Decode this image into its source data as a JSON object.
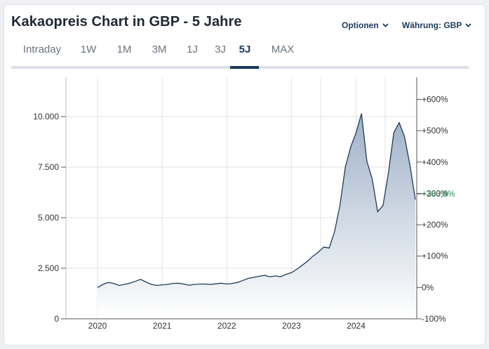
{
  "header": {
    "title": "Kakaopreis Chart in GBP - 5 Jahre",
    "options_label": "Optionen",
    "currency_label": "Währung: GBP"
  },
  "tabs": [
    {
      "label": "Intraday",
      "active": false
    },
    {
      "label": "1W",
      "active": false
    },
    {
      "label": "1M",
      "active": false
    },
    {
      "label": "3M",
      "active": false
    },
    {
      "label": "1J",
      "active": false
    },
    {
      "label": "3J",
      "active": false
    },
    {
      "label": "5J",
      "active": true
    },
    {
      "label": "MAX",
      "active": false
    }
  ],
  "colors": {
    "line": "#1f3a5c",
    "area_top": "#9fb1c7",
    "area_bottom": "#ffffff",
    "highlight": "#2e8b57",
    "axis_text": "#333333",
    "grid": "#e3e3e3"
  },
  "chart_data": {
    "type": "area",
    "x_start": "2020-01",
    "x_end": "2024-12",
    "y_left_ticks": [
      "0",
      "2.500",
      "5.000",
      "7.500",
      "10.000"
    ],
    "y_left_tick_values": [
      0,
      2500,
      5000,
      7500,
      10000
    ],
    "y_right_ticks": [
      "-100%",
      "0%",
      "+100%",
      "+200%",
      "+300%",
      "+400%",
      "+500%",
      "+600%"
    ],
    "y_right_tick_values": [
      -100,
      0,
      100,
      200,
      300,
      400,
      500,
      600
    ],
    "x_ticks": [
      "2020",
      "2021",
      "2022",
      "2023",
      "2024"
    ],
    "x_tick_values": [
      "2020-01",
      "2021-01",
      "2022-01",
      "2023-01",
      "2024-01"
    ],
    "ylim": [
      0,
      12000
    ],
    "current_change_label": "+283,8%",
    "series": [
      {
        "x": [
          "2020-01",
          "2020-02",
          "2020-03",
          "2020-04",
          "2020-05",
          "2020-06",
          "2020-07",
          "2020-08",
          "2020-09",
          "2020-10",
          "2020-11",
          "2020-12",
          "2021-01",
          "2021-02",
          "2021-03",
          "2021-04",
          "2021-05",
          "2021-06",
          "2021-07",
          "2021-08",
          "2021-09",
          "2021-10",
          "2021-11",
          "2021-12",
          "2022-01",
          "2022-02",
          "2022-03",
          "2022-04",
          "2022-05",
          "2022-06",
          "2022-07",
          "2022-08",
          "2022-09",
          "2022-10",
          "2022-11",
          "2022-12",
          "2023-01",
          "2023-02",
          "2023-03",
          "2023-04",
          "2023-05",
          "2023-06",
          "2023-07",
          "2023-08",
          "2023-09",
          "2023-10",
          "2023-11",
          "2023-12",
          "2024-01",
          "2024-02",
          "2024-03",
          "2024-04",
          "2024-05",
          "2024-06",
          "2024-07",
          "2024-08",
          "2024-09",
          "2024-10",
          "2024-11",
          "2024-12"
        ],
        "y": [
          1550,
          1700,
          1800,
          1750,
          1650,
          1700,
          1760,
          1850,
          1950,
          1820,
          1700,
          1650,
          1680,
          1700,
          1750,
          1760,
          1720,
          1660,
          1700,
          1720,
          1720,
          1700,
          1730,
          1760,
          1720,
          1750,
          1800,
          1900,
          2000,
          2050,
          2100,
          2150,
          2080,
          2120,
          2080,
          2200,
          2280,
          2450,
          2650,
          2850,
          3100,
          3300,
          3550,
          3500,
          4300,
          5600,
          7500,
          8500,
          9200,
          10150,
          7800,
          6900,
          5300,
          5600,
          7200,
          9200,
          9700,
          9000,
          7600,
          5900
        ]
      }
    ]
  }
}
